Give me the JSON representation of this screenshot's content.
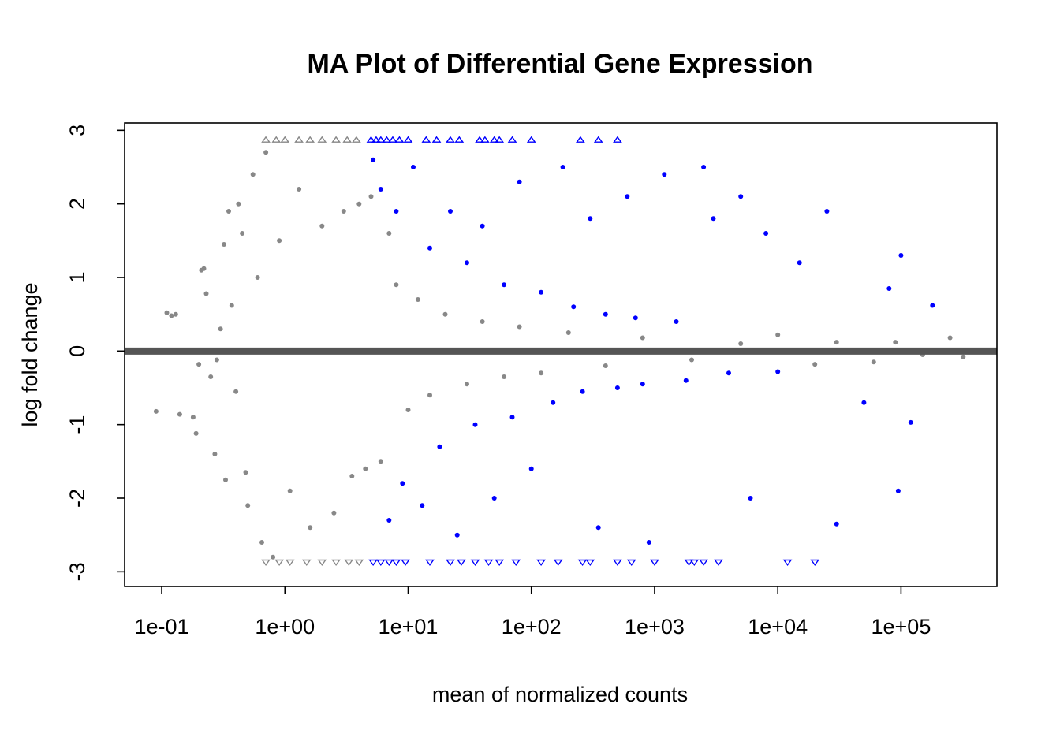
{
  "chart_data": {
    "type": "scatter",
    "title": "MA Plot of Differential Gene Expression",
    "xlabel": "mean of normalized counts",
    "ylabel": "log fold change",
    "x_scale": "log10",
    "xlim": [
      0.05,
      600000
    ],
    "ylim": [
      -3.2,
      3.1
    ],
    "x_ticks": [
      0.1,
      1,
      10,
      100,
      1000,
      10000,
      100000
    ],
    "x_tick_labels": [
      "1e-01",
      "1e+00",
      "1e+01",
      "1e+02",
      "1e+03",
      "1e+04",
      "1e+05"
    ],
    "y_ticks": [
      -3,
      -2,
      -1,
      0,
      1,
      2,
      3
    ],
    "y_tick_labels": [
      "-3",
      "-2",
      "-1",
      "0",
      "1",
      "2",
      "3"
    ],
    "grid": false,
    "legend": "none",
    "reference_line": {
      "y": 0,
      "color": "#555555"
    },
    "clip_value": 2.87,
    "colors": {
      "not_significant": "#888888",
      "significant": "#0000ff",
      "frame": "#000000"
    },
    "series": [
      {
        "significant": false,
        "color": "#888888",
        "points": [
          [
            0.09,
            -0.82
          ],
          [
            0.11,
            0.52
          ],
          [
            0.12,
            0.48
          ],
          [
            0.13,
            0.5
          ],
          [
            0.14,
            -0.86
          ],
          [
            0.18,
            -0.9
          ],
          [
            0.19,
            -1.12
          ],
          [
            0.2,
            -0.18
          ],
          [
            0.21,
            1.1
          ],
          [
            0.22,
            1.12
          ],
          [
            0.23,
            0.78
          ],
          [
            0.25,
            -0.35
          ],
          [
            0.27,
            -1.4
          ],
          [
            0.28,
            -0.12
          ],
          [
            0.3,
            0.3
          ],
          [
            0.32,
            1.45
          ],
          [
            0.33,
            -1.75
          ],
          [
            0.35,
            1.9
          ],
          [
            0.37,
            0.62
          ],
          [
            0.4,
            -0.55
          ],
          [
            0.42,
            2.0
          ],
          [
            0.45,
            1.6
          ],
          [
            0.48,
            -1.65
          ],
          [
            0.5,
            -2.1
          ],
          [
            0.55,
            2.4
          ],
          [
            0.6,
            1.0
          ],
          [
            0.65,
            -2.6
          ],
          [
            0.7,
            2.7
          ],
          [
            0.8,
            -2.8
          ],
          [
            0.9,
            1.5
          ],
          [
            1.1,
            -1.9
          ],
          [
            1.3,
            2.2
          ],
          [
            1.6,
            -2.4
          ],
          [
            2.0,
            1.7
          ],
          [
            2.5,
            -2.2
          ],
          [
            3.0,
            1.9
          ],
          [
            3.5,
            -1.7
          ],
          [
            4.0,
            2.0
          ],
          [
            4.5,
            -1.6
          ],
          [
            5.0,
            2.1
          ],
          [
            6.0,
            -1.5
          ],
          [
            7.0,
            1.6
          ],
          [
            8.0,
            0.9
          ],
          [
            10.0,
            -0.8
          ],
          [
            12.0,
            0.7
          ],
          [
            15.0,
            -0.6
          ],
          [
            20.0,
            0.5
          ],
          [
            30.0,
            -0.45
          ],
          [
            40.0,
            0.4
          ],
          [
            60.0,
            -0.35
          ],
          [
            80.0,
            0.33
          ],
          [
            120.0,
            -0.3
          ],
          [
            200.0,
            0.25
          ],
          [
            400.0,
            -0.2
          ],
          [
            800.0,
            0.18
          ],
          [
            2000.0,
            -0.12
          ],
          [
            5000.0,
            0.1
          ],
          [
            10000.0,
            0.22
          ],
          [
            20000.0,
            -0.18
          ],
          [
            30000.0,
            0.12
          ],
          [
            60000.0,
            -0.15
          ],
          [
            90000.0,
            0.12
          ],
          [
            150000.0,
            -0.05
          ],
          [
            250000.0,
            0.18
          ],
          [
            320000.0,
            -0.08
          ]
        ]
      },
      {
        "significant": true,
        "color": "#0000ff",
        "points": [
          [
            5.2,
            2.6
          ],
          [
            6.0,
            2.2
          ],
          [
            7.0,
            -2.3
          ],
          [
            8.0,
            1.9
          ],
          [
            9.0,
            -1.8
          ],
          [
            11.0,
            2.5
          ],
          [
            13.0,
            -2.1
          ],
          [
            15.0,
            1.4
          ],
          [
            18.0,
            -1.3
          ],
          [
            22.0,
            1.9
          ],
          [
            25.0,
            -2.5
          ],
          [
            30.0,
            1.2
          ],
          [
            35.0,
            -1.0
          ],
          [
            40.0,
            1.7
          ],
          [
            50.0,
            -2.0
          ],
          [
            60.0,
            0.9
          ],
          [
            70.0,
            -0.9
          ],
          [
            80.0,
            2.3
          ],
          [
            100.0,
            -1.6
          ],
          [
            120.0,
            0.8
          ],
          [
            150.0,
            -0.7
          ],
          [
            180.0,
            2.5
          ],
          [
            220.0,
            0.6
          ],
          [
            260.0,
            -0.55
          ],
          [
            300.0,
            1.8
          ],
          [
            350.0,
            -2.4
          ],
          [
            400.0,
            0.5
          ],
          [
            500.0,
            -0.5
          ],
          [
            600.0,
            2.1
          ],
          [
            700.0,
            0.45
          ],
          [
            800.0,
            -0.45
          ],
          [
            900.0,
            -2.6
          ],
          [
            1200.0,
            2.4
          ],
          [
            1500.0,
            0.4
          ],
          [
            1800.0,
            -0.4
          ],
          [
            2500.0,
            2.5
          ],
          [
            3000.0,
            1.8
          ],
          [
            4000.0,
            -0.3
          ],
          [
            5000.0,
            2.1
          ],
          [
            6000.0,
            -2.0
          ],
          [
            8000.0,
            1.6
          ],
          [
            10000.0,
            -0.28
          ],
          [
            15000.0,
            1.2
          ],
          [
            25000.0,
            1.9
          ],
          [
            30000.0,
            -2.35
          ],
          [
            50000.0,
            -0.7
          ],
          [
            80000.0,
            0.85
          ],
          [
            100000.0,
            1.3
          ],
          [
            95000.0,
            -1.9
          ],
          [
            120000.0,
            -0.97
          ],
          [
            180000.0,
            0.62
          ]
        ]
      }
    ],
    "clipped_markers": [
      {
        "x": [
          0.7,
          0.85,
          1.0,
          1.3,
          1.6,
          2.0,
          2.6,
          3.2,
          3.8
        ],
        "direction": "up",
        "color": "#888888"
      },
      {
        "x": [
          0.7,
          0.9,
          1.1,
          1.5,
          2.0,
          2.6,
          3.3,
          4.0
        ],
        "direction": "down",
        "color": "#888888"
      },
      {
        "x": [
          5.0,
          5.5,
          6.0,
          6.7,
          7.5,
          8.5,
          10.0,
          14.0,
          17.0,
          22.0,
          26.0,
          38.0,
          42.0,
          50.0,
          55.0,
          70.0,
          100.0,
          250.0,
          350.0,
          500.0
        ],
        "direction": "up",
        "color": "#0000ff"
      },
      {
        "x": [
          5.2,
          6.0,
          7.0,
          8.0,
          9.5,
          15.0,
          22.0,
          27.0,
          35.0,
          45.0,
          55.0,
          75.0,
          120.0,
          165.0,
          260.0,
          300.0,
          500.0,
          650.0,
          1000.0,
          1900.0,
          2100.0,
          2500.0,
          3300.0,
          12000.0,
          20000.0
        ],
        "direction": "down",
        "color": "#0000ff"
      }
    ]
  }
}
